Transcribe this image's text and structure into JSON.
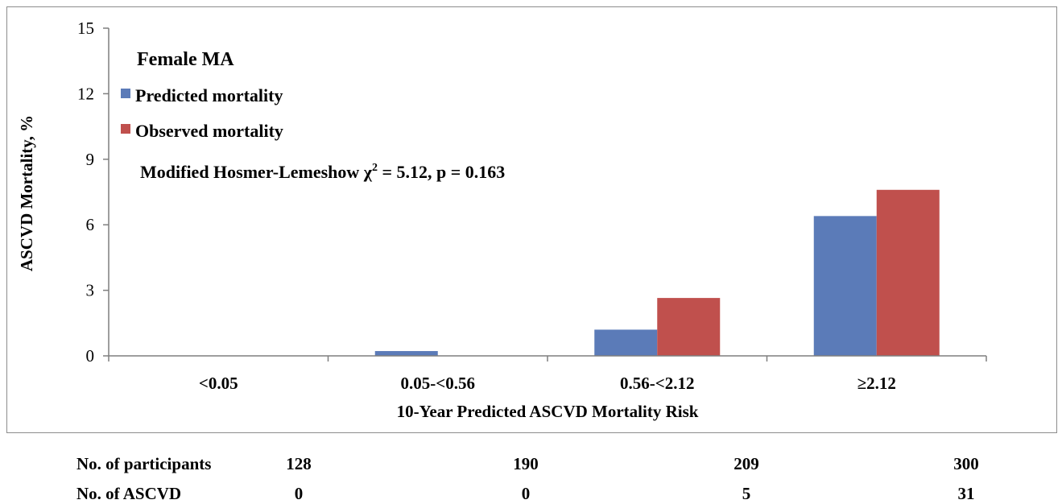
{
  "chart_data": {
    "type": "bar",
    "ylabel": "ASCVD Mortality, %",
    "xlabel": "10-Year Predicted ASCVD Mortality Risk",
    "ylim": [
      0,
      15
    ],
    "yticks": [
      "0",
      "3",
      "6",
      "9",
      "12",
      "15"
    ],
    "categories": [
      "<0.05",
      "0.05-<0.56",
      "0.56-<2.12",
      "≥2.12"
    ],
    "series": [
      {
        "name": "Predicted mortality",
        "color": "#5b7bb8",
        "values": [
          0.0,
          0.22,
          1.2,
          6.4
        ]
      },
      {
        "name": "Observed mortality",
        "color": "#c0504d",
        "values": [
          0.0,
          0.0,
          2.65,
          7.6
        ]
      }
    ],
    "grid": false,
    "legend_position": "top-left",
    "annotations": {
      "group_label": "Female MA",
      "test_prefix": "Modified Hosmer-Lemeshow χ",
      "test_sup": "2",
      "test_suffix": " = 5.12, p = 0.163"
    }
  },
  "table": {
    "rows": [
      {
        "label": "No. of participants",
        "values": [
          "128",
          "190",
          "209",
          "300"
        ]
      },
      {
        "label": "No. of ASCVD",
        "values": [
          "0",
          "0",
          "5",
          "31"
        ]
      }
    ]
  }
}
